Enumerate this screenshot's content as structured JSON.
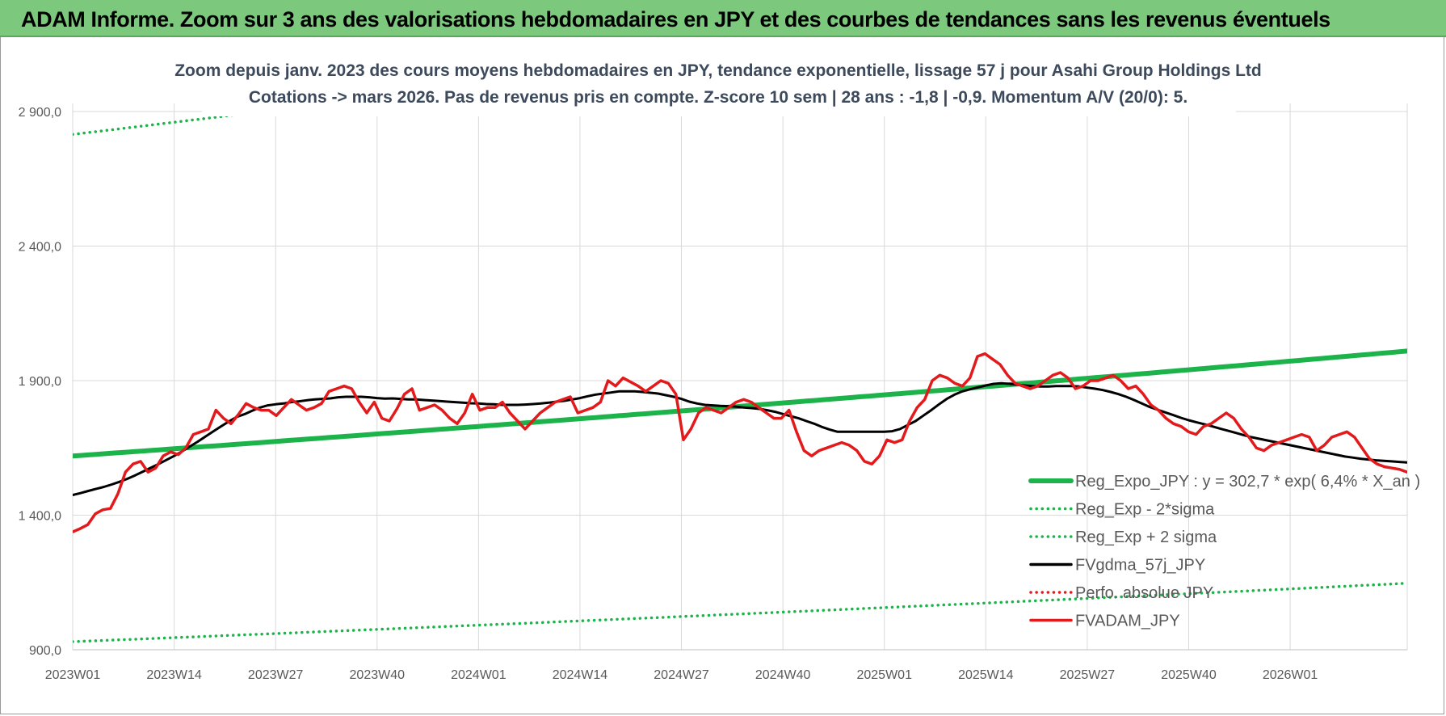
{
  "header": {
    "title": "ADAM Informe. Zoom sur 3 ans des valorisations hebdomadaires en JPY et des courbes de tendances sans les revenus éventuels"
  },
  "chart_data": {
    "type": "line",
    "title": "Zoom depuis janv. 2023 des cours moyens hebdomadaires en JPY, tendance exponentielle, lissage 57 j pour Asahi Group Holdings Ltd",
    "subtitle": "Cotations -> mars 2026. Pas de revenus pris en compte. Z-score 10 sem | 28 ans : -1,8 | -0,9. Momentum A/V (20/0): 5.",
    "xlabel": "",
    "ylabel": "",
    "ylim": [
      900,
      2900
    ],
    "y_ticks": [
      "900,0",
      "1 400,0",
      "1 900,0",
      "2 400,0",
      "2 900,0"
    ],
    "x_ticks": [
      "2023W01",
      "2023W14",
      "2023W27",
      "2023W40",
      "2024W01",
      "2024W14",
      "2024W27",
      "2024W40",
      "2025W01",
      "2025W14",
      "2025W27",
      "2025W40",
      "2026W01"
    ],
    "x_range_weeks": [
      0,
      171
    ],
    "grid": true,
    "legend_position": "bottom-right",
    "series": [
      {
        "name": "Reg_Expo_JPY : y = 302,7 * exp( 6,4% *  X_an )",
        "style": "thick",
        "color": "#1db34b",
        "start": 1620,
        "end": 2010
      },
      {
        "name": "Reg_Exp - 2*sigma",
        "style": "dotted",
        "color": "#1db34b",
        "start": 930,
        "end": 1147
      },
      {
        "name": "Reg_Exp + 2 sigma",
        "style": "dotted",
        "color": "#1db34b",
        "start": 2815,
        "end": 3470
      },
      {
        "name": "FVgdma_57j_JPY",
        "style": "solid",
        "color": "#000000",
        "values": [
          1475,
          1482,
          1490,
          1498,
          1505,
          1514,
          1524,
          1535,
          1548,
          1562,
          1576,
          1590,
          1605,
          1620,
          1637,
          1655,
          1673,
          1692,
          1711,
          1730,
          1748,
          1765,
          1775,
          1788,
          1800,
          1808,
          1812,
          1815,
          1820,
          1823,
          1827,
          1830,
          1832,
          1834,
          1838,
          1840,
          1840,
          1840,
          1838,
          1835,
          1833,
          1834,
          1832,
          1830,
          1830,
          1828,
          1826,
          1824,
          1822,
          1820,
          1818,
          1816,
          1815,
          1813,
          1812,
          1810,
          1810,
          1810,
          1811,
          1813,
          1815,
          1818,
          1822,
          1825,
          1830,
          1835,
          1842,
          1848,
          1852,
          1856,
          1860,
          1860,
          1860,
          1858,
          1855,
          1852,
          1846,
          1840,
          1832,
          1822,
          1815,
          1810,
          1808,
          1806,
          1805,
          1803,
          1800,
          1798,
          1795,
          1790,
          1784,
          1776,
          1768,
          1760,
          1750,
          1740,
          1728,
          1718,
          1710,
          1710,
          1710,
          1710,
          1710,
          1710,
          1710,
          1712,
          1720,
          1735,
          1750,
          1770,
          1790,
          1812,
          1832,
          1848,
          1860,
          1868,
          1875,
          1882,
          1888,
          1890,
          1888,
          1885,
          1882,
          1880,
          1878,
          1878,
          1880,
          1880,
          1880,
          1878,
          1874,
          1870,
          1865,
          1858,
          1850,
          1840,
          1828,
          1815,
          1802,
          1792,
          1782,
          1772,
          1762,
          1753,
          1745,
          1738,
          1730,
          1722,
          1714,
          1706,
          1698,
          1690,
          1684,
          1678,
          1672,
          1666,
          1660,
          1654,
          1648,
          1642,
          1636,
          1630,
          1624,
          1618,
          1614,
          1610,
          1607,
          1604,
          1602,
          1600,
          1598,
          1596
        ]
      },
      {
        "name": "Perfo. absolue JPY",
        "style": "dotted",
        "color": "#e31a1c",
        "values": []
      },
      {
        "name": "FVADAM_JPY",
        "style": "solid",
        "color": "#e31a1c",
        "values": [
          1338,
          1350,
          1365,
          1405,
          1420,
          1425,
          1480,
          1560,
          1590,
          1600,
          1560,
          1575,
          1620,
          1635,
          1625,
          1650,
          1700,
          1710,
          1720,
          1790,
          1760,
          1740,
          1775,
          1815,
          1800,
          1790,
          1790,
          1770,
          1800,
          1830,
          1810,
          1790,
          1800,
          1815,
          1860,
          1870,
          1880,
          1870,
          1820,
          1780,
          1820,
          1760,
          1750,
          1795,
          1850,
          1870,
          1790,
          1800,
          1810,
          1790,
          1760,
          1740,
          1780,
          1850,
          1790,
          1800,
          1800,
          1820,
          1780,
          1750,
          1720,
          1750,
          1780,
          1800,
          1820,
          1830,
          1840,
          1780,
          1790,
          1800,
          1820,
          1900,
          1880,
          1910,
          1895,
          1880,
          1860,
          1880,
          1900,
          1890,
          1850,
          1680,
          1720,
          1780,
          1800,
          1790,
          1780,
          1800,
          1820,
          1830,
          1820,
          1800,
          1780,
          1760,
          1760,
          1790,
          1710,
          1640,
          1620,
          1640,
          1650,
          1660,
          1670,
          1660,
          1640,
          1600,
          1590,
          1620,
          1680,
          1670,
          1680,
          1750,
          1800,
          1830,
          1900,
          1920,
          1910,
          1890,
          1880,
          1910,
          1990,
          2000,
          1980,
          1960,
          1920,
          1890,
          1880,
          1870,
          1880,
          1900,
          1920,
          1930,
          1910,
          1870,
          1880,
          1900,
          1900,
          1910,
          1920,
          1900,
          1870,
          1880,
          1850,
          1810,
          1790,
          1760,
          1740,
          1730,
          1710,
          1700,
          1730,
          1740,
          1760,
          1780,
          1760,
          1720,
          1690,
          1650,
          1640,
          1660,
          1670,
          1680,
          1690,
          1700,
          1690,
          1640,
          1660,
          1690,
          1700,
          1710,
          1690,
          1650,
          1610,
          1590,
          1580,
          1575,
          1570,
          1560
        ]
      }
    ]
  }
}
